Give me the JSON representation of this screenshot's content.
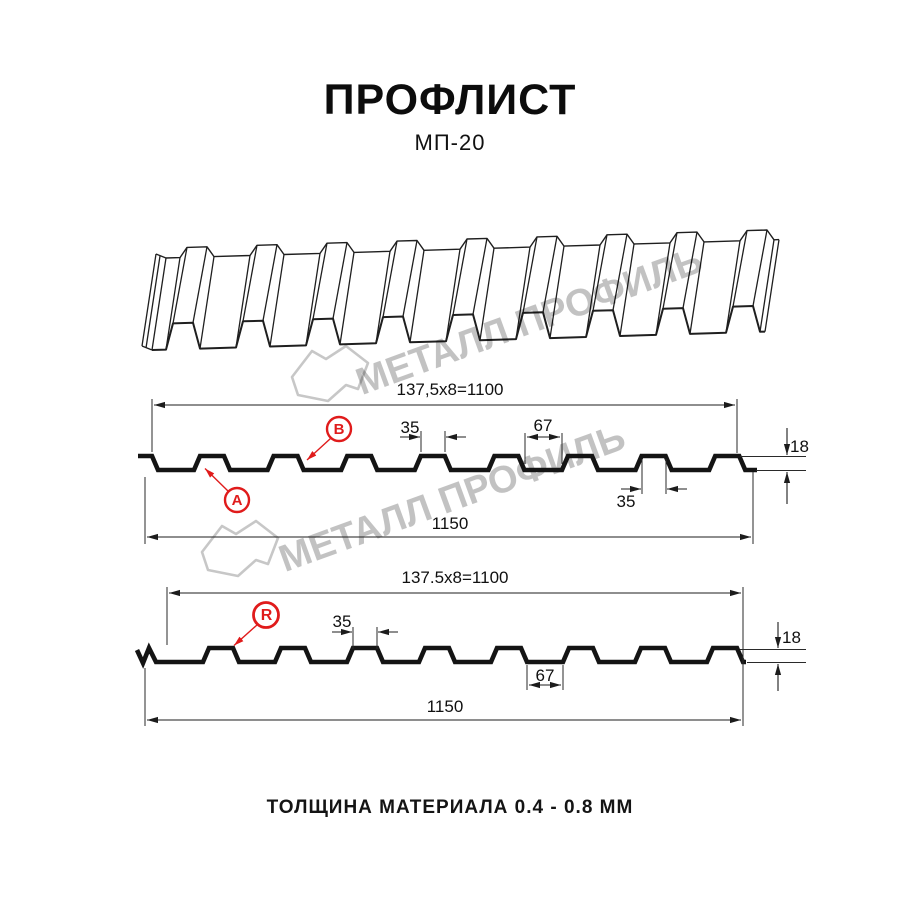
{
  "header": {
    "title": "ПРОФЛИСТ",
    "subtitle": "МП-20"
  },
  "watermark": {
    "text": "МЕТАЛЛ ПРОФИЛЬ"
  },
  "colors": {
    "accent_red": "#e01b1b",
    "line_black": "#1c1c1c",
    "watermark_gray": "#c4c4c4"
  },
  "section1": {
    "top_dim": "137,5x8=1100",
    "labels": {
      "a": "A",
      "b": "B"
    },
    "dims": {
      "rib_top": "35",
      "valley": "67",
      "height": "18",
      "rib_bottom": "35",
      "overall": "1150"
    }
  },
  "section2": {
    "top_dim": "137.5x8=1100",
    "labels": {
      "r": "R"
    },
    "dims": {
      "rib_top": "35",
      "valley": "67",
      "height": "18",
      "overall": "1150"
    }
  },
  "footer": {
    "text": "ТОЛЩИНА МАТЕРИАЛА 0.4 - 0.8 ММ"
  }
}
